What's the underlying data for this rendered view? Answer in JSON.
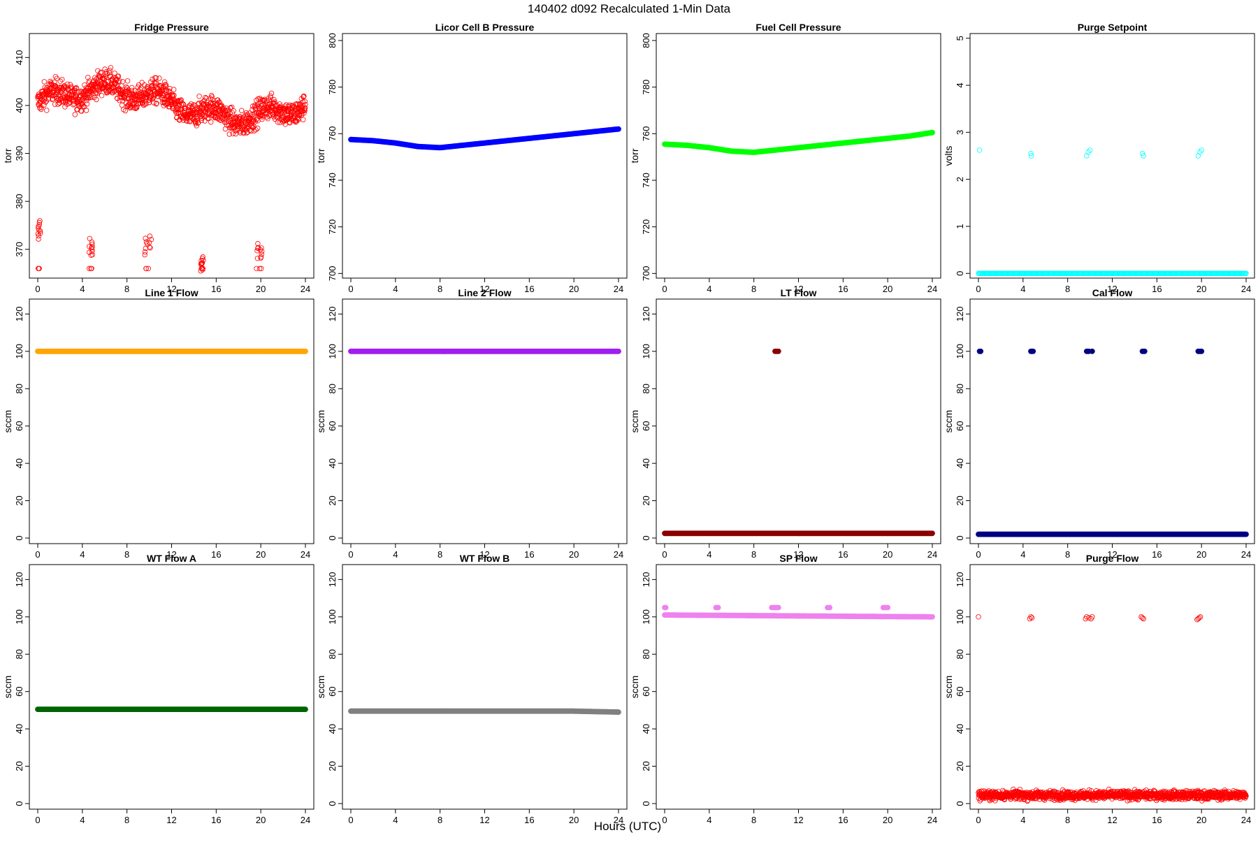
{
  "page_title": "140402   d092   Recalculated 1-Min Data",
  "xlabel": "Hours (UTC)",
  "chart_data": [
    {
      "title": "Fridge Pressure",
      "type": "scatter",
      "ylabel": "torr",
      "color": "#FF0000",
      "marker": "open-circle",
      "xlim": [
        0,
        24
      ],
      "ylim": [
        364,
        415
      ],
      "xticks": [
        0,
        4,
        8,
        12,
        16,
        20,
        24
      ],
      "yticks": [
        370,
        380,
        390,
        400,
        410
      ],
      "pattern": {
        "kind": "bimodal",
        "main_level": 400.5,
        "main_spread": 9,
        "low_bursts": [
          [
            0,
            0.25,
            374,
            366
          ],
          [
            4.6,
            4.9,
            370,
            366
          ],
          [
            9.6,
            10.2,
            371,
            366
          ],
          [
            14.6,
            14.9,
            367,
            366
          ],
          [
            19.6,
            20.1,
            370,
            366
          ]
        ]
      },
      "y_range_observed": [
        365,
        414
      ]
    },
    {
      "title": "Licor Cell B Pressure",
      "type": "scatter",
      "ylabel": "torr",
      "color": "#0000FF",
      "marker": "filled-circle",
      "xlim": [
        0,
        24
      ],
      "ylim": [
        698,
        803
      ],
      "xticks": [
        0,
        4,
        8,
        12,
        16,
        20,
        24
      ],
      "yticks": [
        700,
        720,
        740,
        760,
        780,
        800
      ],
      "x": [
        0,
        2,
        4,
        6,
        8,
        10,
        12,
        14,
        16,
        18,
        20,
        22,
        24
      ],
      "y": [
        757.5,
        757,
        756,
        754.5,
        754,
        755,
        756,
        757,
        758,
        759,
        760,
        761,
        762
      ]
    },
    {
      "title": "Fuel Cell Pressure",
      "type": "scatter",
      "ylabel": "torr",
      "color": "#00FF00",
      "marker": "filled-circle",
      "xlim": [
        0,
        24
      ],
      "ylim": [
        698,
        803
      ],
      "xticks": [
        0,
        4,
        8,
        12,
        16,
        20,
        24
      ],
      "yticks": [
        700,
        720,
        740,
        760,
        780,
        800
      ],
      "x": [
        0,
        2,
        4,
        6,
        8,
        10,
        12,
        14,
        16,
        18,
        20,
        22,
        24
      ],
      "y": [
        755.5,
        755,
        754,
        752.5,
        752,
        753,
        754,
        755,
        756,
        757,
        758,
        759,
        760.5
      ]
    },
    {
      "title": "Purge Setpoint",
      "type": "scatter",
      "ylabel": "volts",
      "color": "#00FFFF",
      "marker": "open-circle",
      "xlim": [
        0,
        24
      ],
      "ylim": [
        -0.1,
        5.1
      ],
      "xticks": [
        0,
        4,
        8,
        12,
        16,
        20,
        24
      ],
      "yticks": [
        0,
        1,
        2,
        3,
        4,
        5
      ],
      "pattern": {
        "kind": "baseline_events",
        "base": 0,
        "events": [
          [
            0.1,
            2.62
          ],
          [
            4.7,
            2.55
          ],
          [
            4.75,
            2.5
          ],
          [
            9.7,
            2.5
          ],
          [
            9.85,
            2.58
          ],
          [
            10.0,
            2.62
          ],
          [
            14.7,
            2.55
          ],
          [
            14.8,
            2.5
          ],
          [
            19.7,
            2.5
          ],
          [
            19.85,
            2.58
          ],
          [
            20.0,
            2.62
          ]
        ]
      }
    },
    {
      "title": "Line 1 Flow",
      "type": "scatter",
      "ylabel": "sccm",
      "color": "#FFA500",
      "marker": "filled-circle",
      "xlim": [
        0,
        24
      ],
      "ylim": [
        -3,
        128
      ],
      "xticks": [
        0,
        4,
        8,
        12,
        16,
        20,
        24
      ],
      "yticks": [
        0,
        20,
        40,
        60,
        80,
        100,
        120
      ],
      "x": [
        0,
        24
      ],
      "y": [
        100,
        100
      ]
    },
    {
      "title": "Line 2 Flow",
      "type": "scatter",
      "ylabel": "sccm",
      "color": "#A020F0",
      "marker": "filled-circle",
      "xlim": [
        0,
        24
      ],
      "ylim": [
        -3,
        128
      ],
      "xticks": [
        0,
        4,
        8,
        12,
        16,
        20,
        24
      ],
      "yticks": [
        0,
        20,
        40,
        60,
        80,
        100,
        120
      ],
      "x": [
        0,
        24
      ],
      "y": [
        100,
        100
      ]
    },
    {
      "title": "LT Flow",
      "type": "scatter",
      "ylabel": "sccm",
      "color": "#8B0000",
      "marker": "filled-circle",
      "xlim": [
        0,
        24
      ],
      "ylim": [
        -3,
        128
      ],
      "xticks": [
        0,
        4,
        8,
        12,
        16,
        20,
        24
      ],
      "yticks": [
        0,
        20,
        40,
        60,
        80,
        100,
        120
      ],
      "pattern": {
        "kind": "baseline_events",
        "base": 2.5,
        "events": [
          [
            9.9,
            100
          ],
          [
            10.0,
            100
          ],
          [
            10.1,
            100
          ],
          [
            10.2,
            100
          ]
        ]
      }
    },
    {
      "title": "Cal Flow",
      "type": "scatter",
      "ylabel": "sccm",
      "color": "#000080",
      "marker": "filled-circle",
      "xlim": [
        0,
        24
      ],
      "ylim": [
        -3,
        128
      ],
      "xticks": [
        0,
        4,
        8,
        12,
        16,
        20,
        24
      ],
      "yticks": [
        0,
        20,
        40,
        60,
        80,
        100,
        120
      ],
      "pattern": {
        "kind": "baseline_events",
        "base": 2,
        "events": [
          [
            0.1,
            100
          ],
          [
            0.2,
            100
          ],
          [
            4.7,
            100
          ],
          [
            4.8,
            100
          ],
          [
            4.9,
            100
          ],
          [
            9.7,
            100
          ],
          [
            9.8,
            100
          ],
          [
            9.9,
            100
          ],
          [
            10.2,
            100
          ],
          [
            14.7,
            100
          ],
          [
            14.8,
            100
          ],
          [
            14.9,
            100
          ],
          [
            19.7,
            100
          ],
          [
            19.8,
            100
          ],
          [
            19.9,
            100
          ],
          [
            20.0,
            100
          ]
        ]
      }
    },
    {
      "title": "WT Flow A",
      "type": "scatter",
      "ylabel": "sccm",
      "color": "#006400",
      "marker": "filled-circle",
      "xlim": [
        0,
        24
      ],
      "ylim": [
        -3,
        128
      ],
      "xticks": [
        0,
        4,
        8,
        12,
        16,
        20,
        24
      ],
      "yticks": [
        0,
        20,
        40,
        60,
        80,
        100,
        120
      ],
      "x": [
        0,
        24
      ],
      "y": [
        50.5,
        50.5
      ]
    },
    {
      "title": "WT Flow B",
      "type": "scatter",
      "ylabel": "sccm",
      "color": "#808080",
      "marker": "filled-circle",
      "xlim": [
        0,
        24
      ],
      "ylim": [
        -3,
        128
      ],
      "xticks": [
        0,
        4,
        8,
        12,
        16,
        20,
        24
      ],
      "yticks": [
        0,
        20,
        40,
        60,
        80,
        100,
        120
      ],
      "x": [
        0,
        12,
        20,
        24
      ],
      "y": [
        49.5,
        49.5,
        49.5,
        49
      ]
    },
    {
      "title": "SP Flow",
      "type": "scatter",
      "ylabel": "sccm",
      "color": "#EE82EE",
      "marker": "filled-circle",
      "xlim": [
        0,
        24
      ],
      "ylim": [
        -3,
        128
      ],
      "xticks": [
        0,
        4,
        8,
        12,
        16,
        20,
        24
      ],
      "yticks": [
        0,
        20,
        40,
        60,
        80,
        100,
        120
      ],
      "x": [
        0,
        24
      ],
      "y": [
        101,
        100
      ],
      "pattern": {
        "kind": "baseline_events",
        "base": 100.5,
        "events": [
          [
            0,
            105
          ],
          [
            0.1,
            105
          ],
          [
            4.6,
            105
          ],
          [
            4.8,
            105
          ],
          [
            9.6,
            105
          ],
          [
            9.8,
            105
          ],
          [
            10.0,
            105
          ],
          [
            10.2,
            105
          ],
          [
            14.6,
            105
          ],
          [
            14.8,
            105
          ],
          [
            19.6,
            105
          ],
          [
            19.8,
            105
          ],
          [
            20.0,
            105
          ]
        ]
      }
    },
    {
      "title": "Purge Flow",
      "type": "scatter",
      "ylabel": "sccm",
      "color": "#FF0000",
      "marker": "open-circle",
      "xlim": [
        0,
        24
      ],
      "ylim": [
        -3,
        128
      ],
      "xticks": [
        0,
        4,
        8,
        12,
        16,
        20,
        24
      ],
      "yticks": [
        0,
        20,
        40,
        60,
        80,
        100,
        120
      ],
      "pattern": {
        "kind": "noisy_base_events",
        "base": 4.5,
        "spread": 2.5,
        "events": [
          [
            0,
            100
          ],
          [
            4.6,
            99
          ],
          [
            4.7,
            100
          ],
          [
            4.8,
            99.5
          ],
          [
            9.6,
            99
          ],
          [
            9.7,
            100
          ],
          [
            9.9,
            99.5
          ],
          [
            10.1,
            99
          ],
          [
            10.2,
            100
          ],
          [
            14.6,
            100
          ],
          [
            14.7,
            99.5
          ],
          [
            14.8,
            99
          ],
          [
            19.6,
            98.5
          ],
          [
            19.7,
            99
          ],
          [
            19.8,
            99.5
          ],
          [
            19.9,
            100
          ]
        ]
      }
    }
  ]
}
